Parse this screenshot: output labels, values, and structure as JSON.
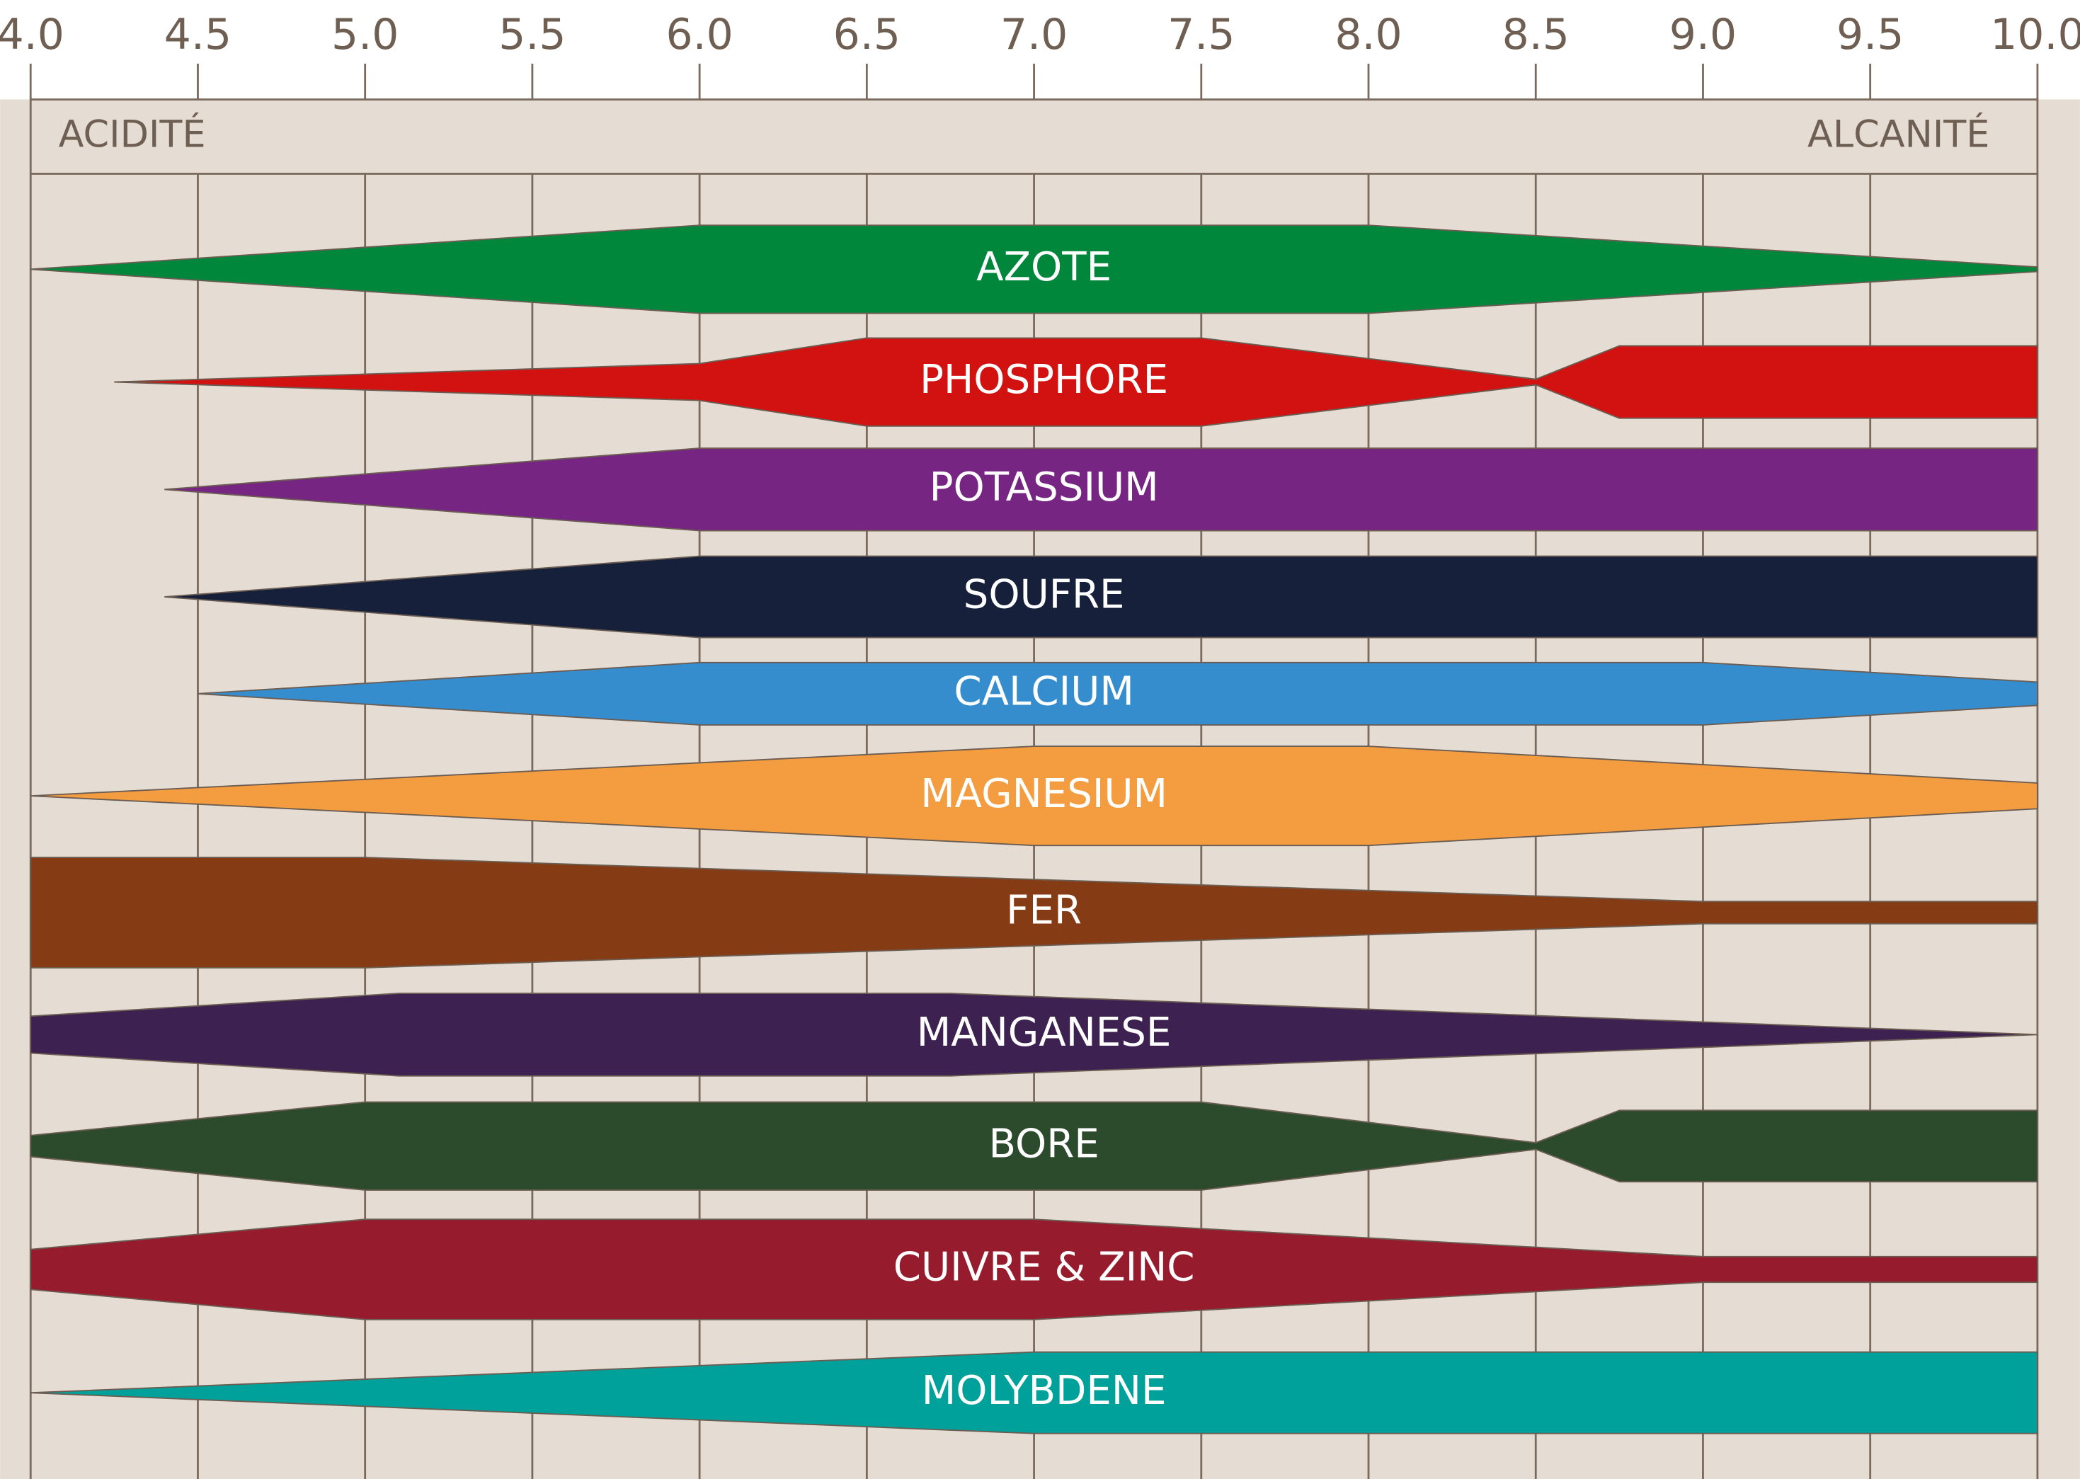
{
  "chart_data": {
    "type": "band",
    "left_label": "ACIDITÉ",
    "right_label": "ALCANITÉ",
    "xlim": [
      4,
      10
    ],
    "xticks": [
      {
        "value": 4,
        "label": "4.0"
      },
      {
        "value": 4.5,
        "label": "4.5"
      },
      {
        "value": 5,
        "label": "5.0"
      },
      {
        "value": 5.5,
        "label": "5.5"
      },
      {
        "value": 6,
        "label": "6.0"
      },
      {
        "value": 6.5,
        "label": "6.5"
      },
      {
        "value": 7,
        "label": "7.0"
      },
      {
        "value": 7.5,
        "label": "7.5"
      },
      {
        "value": 8,
        "label": "8.0"
      },
      {
        "value": 8.5,
        "label": "8.5"
      },
      {
        "value": 9,
        "label": "9.0"
      },
      {
        "value": 9.5,
        "label": "9.5"
      },
      {
        "value": 10,
        "label": "10.0"
      }
    ],
    "grid": true,
    "series": [
      {
        "name": "AZOTE",
        "color": "#00873c",
        "x": [
          4,
          6,
          8,
          10
        ],
        "values": [
          0,
          0.79,
          0.79,
          0.04
        ]
      },
      {
        "name": "PHOSPHORE",
        "color": "#d21111",
        "x": [
          4.25,
          6,
          6.5,
          7.5,
          8.5,
          8.75,
          10
        ],
        "values": [
          0,
          0.33,
          0.79,
          0.79,
          0.05,
          0.65,
          0.65
        ]
      },
      {
        "name": "POTASSIUM",
        "color": "#772583",
        "x": [
          4.4,
          6,
          10
        ],
        "values": [
          0,
          0.74,
          0.74
        ]
      },
      {
        "name": "SOUFRE",
        "color": "#16203a",
        "x": [
          4.4,
          6,
          10
        ],
        "values": [
          0,
          0.73,
          0.73
        ]
      },
      {
        "name": "CALCIUM",
        "color": "#368dce",
        "x": [
          4.5,
          6,
          9,
          10
        ],
        "values": [
          0,
          0.56,
          0.56,
          0.21
        ]
      },
      {
        "name": "MAGNESIUM",
        "color": "#f49c40",
        "x": [
          4,
          7,
          8,
          10
        ],
        "values": [
          0,
          0.89,
          0.89,
          0.23
        ]
      },
      {
        "name": "FER",
        "color": "#853c14",
        "x": [
          4,
          5,
          9,
          10
        ],
        "values": [
          0.99,
          0.99,
          0.2,
          0.2
        ]
      },
      {
        "name": "MANGANESE",
        "color": "#3d2150",
        "x": [
          4,
          5.1,
          6.75,
          10
        ],
        "values": [
          0.33,
          0.74,
          0.74,
          0
        ]
      },
      {
        "name": "BORE",
        "color": "#2b4b2c",
        "x": [
          4,
          5,
          7.5,
          8.5,
          8.75,
          10
        ],
        "values": [
          0.19,
          0.79,
          0.79,
          0.06,
          0.64,
          0.64
        ]
      },
      {
        "name": "CUIVRE & ZINC",
        "color": "#961b2d",
        "x": [
          4,
          5,
          7,
          9,
          10
        ],
        "values": [
          0.36,
          0.9,
          0.9,
          0.23,
          0.23
        ]
      },
      {
        "name": "MOLYBDENE",
        "color": "#00a19a",
        "x": [
          4,
          7,
          10
        ],
        "values": [
          0,
          0.73,
          0.73
        ]
      }
    ]
  }
}
